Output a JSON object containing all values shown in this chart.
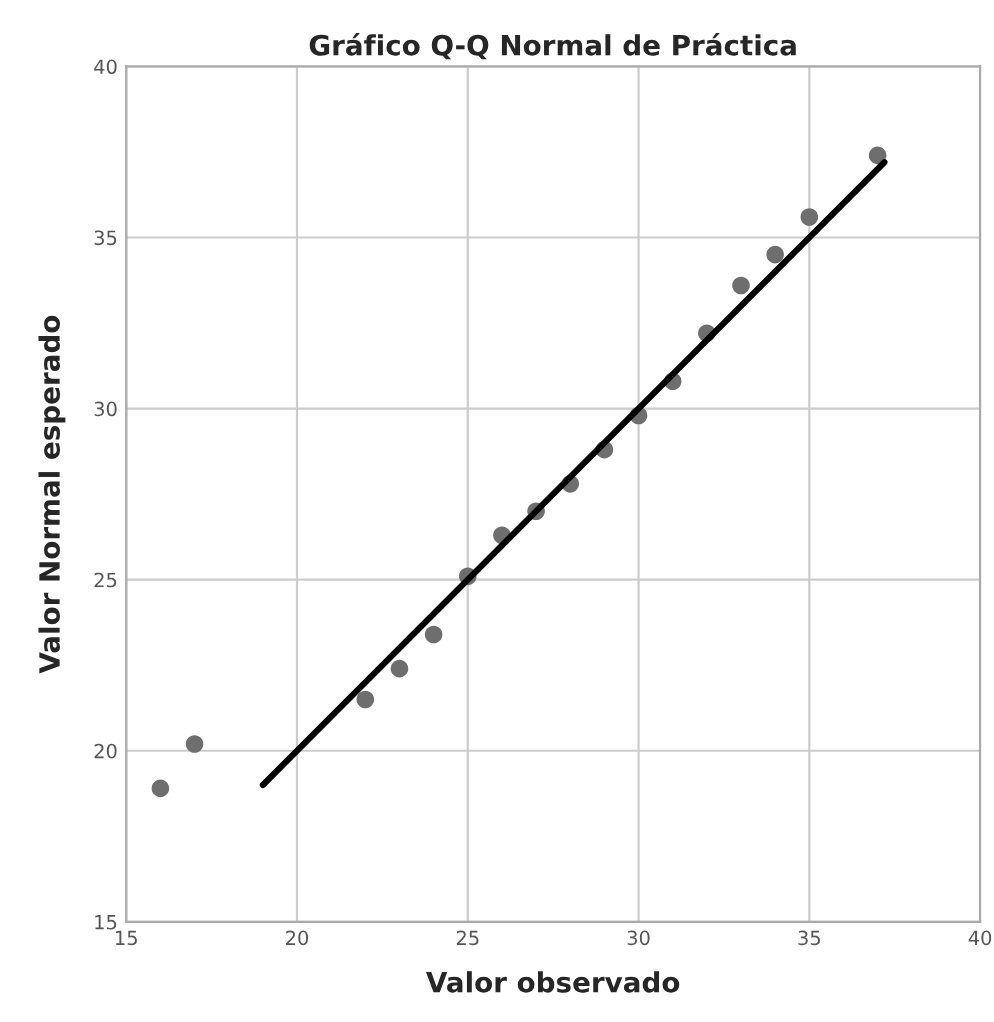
{
  "chart_data": {
    "type": "scatter",
    "title": "Gráfico Q-Q Normal de Práctica",
    "xlabel": "Valor observado",
    "ylabel": "Valor Normal esperado",
    "series": [
      {
        "marker": "circle",
        "color": "#6e6e6e",
        "x": [
          16,
          17,
          22,
          23,
          24,
          25,
          26,
          27,
          28,
          29,
          30,
          31,
          32,
          33,
          34,
          35,
          37
        ],
        "values": [
          18.9,
          20.2,
          21.5,
          22.4,
          23.4,
          25.1,
          26.3,
          27.0,
          27.8,
          28.8,
          29.8,
          30.8,
          32.2,
          33.6,
          34.5,
          35.6,
          37.4
        ]
      },
      {
        "type": "line",
        "color": "#000000",
        "x": [
          19,
          37.2
        ],
        "values": [
          19,
          37.2
        ]
      }
    ],
    "xlim": [
      15,
      40
    ],
    "ylim": [
      15,
      40
    ],
    "xticks": [
      15,
      20,
      25,
      30,
      35,
      40
    ],
    "yticks": [
      15,
      20,
      25,
      30,
      35,
      40
    ],
    "grid": true
  }
}
